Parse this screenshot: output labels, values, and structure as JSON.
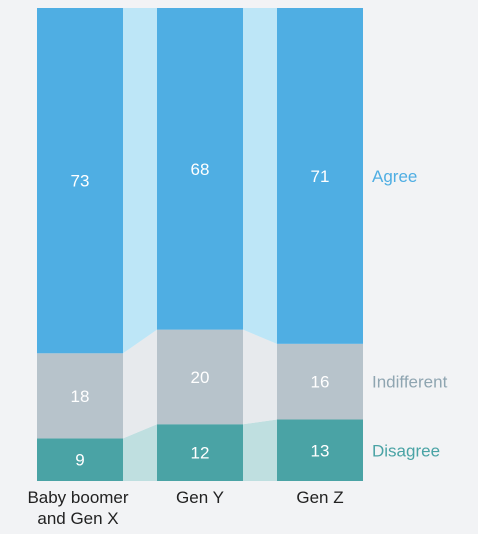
{
  "chart_data": {
    "type": "bar",
    "stacked": true,
    "orientation": "vertical",
    "categories": [
      "Baby boomer and Gen X",
      "Gen Y",
      "Gen Z"
    ],
    "category_label_lines": [
      [
        "Baby boomer",
        "and Gen X"
      ],
      [
        "Gen Y"
      ],
      [
        "Gen Z"
      ]
    ],
    "series": [
      {
        "name": "Disagree",
        "values": [
          9,
          12,
          13
        ],
        "color": "#4aa3a5",
        "connector_color": "#bfdfe0",
        "label_color": "#4aa3a5"
      },
      {
        "name": "Indifferent",
        "values": [
          18,
          20,
          16
        ],
        "color": "#b7c3cb",
        "connector_color": "#e7eaed",
        "label_color": "#8fa5b1"
      },
      {
        "name": "Agree",
        "values": [
          73,
          68,
          71
        ],
        "color": "#4faee3",
        "connector_color": "#bde6f7",
        "label_color": "#4faee3"
      }
    ],
    "ylim": [
      0,
      100
    ],
    "legend_placement": "right, inline with last column"
  }
}
